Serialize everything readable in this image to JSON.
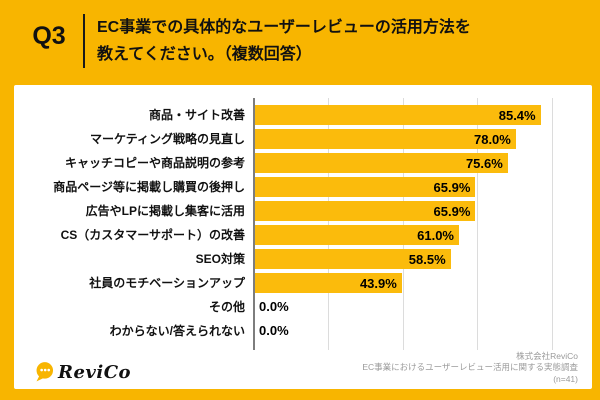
{
  "header": {
    "q_label": "Q3",
    "title_line1": "EC事業での具体的なユーザーレビューの活用方法を",
    "title_line2": "教えてください。（複数回答）"
  },
  "chart_data": {
    "type": "bar",
    "orientation": "horizontal",
    "title": "EC事業での具体的なユーザーレビューの活用方法を教えてください。（複数回答）",
    "categories": [
      "商品・サイト改善",
      "マーケティング戦略の見直し",
      "キャッチコピーや商品説明の参考",
      "商品ページ等に掲載し購買の後押し",
      "広告やLPに掲載し集客に活用",
      "CS（カスタマーサポート）の改善",
      "SEO対策",
      "社員のモチベーションアップ",
      "その他",
      "わからない/答えられない"
    ],
    "values": [
      85.4,
      78.0,
      75.6,
      65.9,
      65.9,
      61.0,
      58.5,
      43.9,
      0.0,
      0.0
    ],
    "value_suffix": "%",
    "xlabel": "",
    "ylabel": "",
    "xlim": [
      0,
      90
    ],
    "gridline_interval": 22.5,
    "grid": true,
    "legend": false,
    "bar_color": "#FBBB0C",
    "sample_size": "n=41"
  },
  "footer": {
    "logo_text": "ReviCo",
    "source_line1": "株式会社ReviCo",
    "source_line2": "EC事業におけるユーザーレビュー活用に関する実態調査",
    "source_line3": "(n=41)"
  },
  "colors": {
    "background": "#F8B500",
    "bar": "#FBBB0C",
    "panel": "#FFFFFF",
    "text": "#111111",
    "source_text": "#9A9A9A",
    "gridline": "#DCDCDC",
    "axis": "#7D7D7D"
  }
}
